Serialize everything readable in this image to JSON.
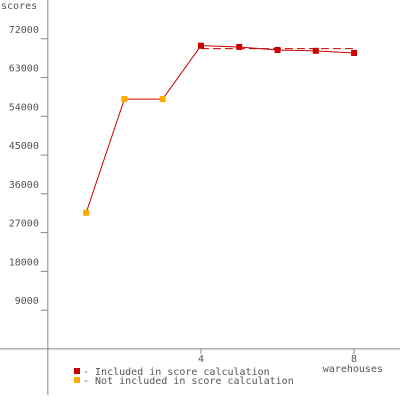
{
  "chart_data": {
    "type": "line",
    "ylabel": "scores",
    "xlabel": "warehouses",
    "x": [
      1,
      2,
      3,
      4,
      5,
      6,
      7,
      8
    ],
    "series": [
      {
        "name": "- Included in score calculation",
        "color": "#cc0000",
        "values": [
          null,
          null,
          null,
          70400,
          70100,
          69400,
          69200,
          68700
        ]
      },
      {
        "name": "- Not included in score calculation",
        "color": "#ffaa00",
        "values": [
          31600,
          58000,
          58000,
          null,
          null,
          null,
          null,
          null
        ]
      }
    ],
    "line_color": "#cc0000",
    "score_line": 69700,
    "score_line_x": [
      4,
      8
    ],
    "xlim": [
      -1.25,
      9.2
    ],
    "ylim": [
      -10700,
      81000
    ],
    "xticks": [
      4,
      8
    ],
    "yticks": [
      9000,
      18000,
      27000,
      36000,
      45000,
      54000,
      63000,
      72000
    ]
  }
}
